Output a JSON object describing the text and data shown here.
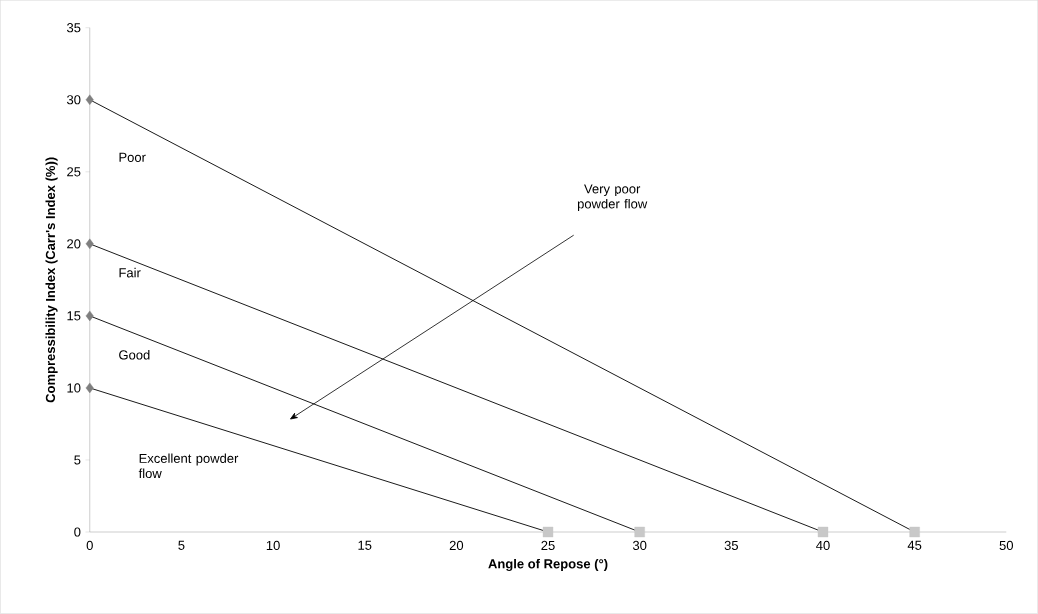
{
  "chart_data": {
    "type": "line",
    "xlabel": "Angle of Repose (°)",
    "ylabel": "Compressibility Index (Carr's Index (%))",
    "xlim": [
      0,
      50
    ],
    "ylim": [
      0,
      35
    ],
    "xticks": [
      0,
      5,
      10,
      15,
      20,
      25,
      30,
      35,
      40,
      45,
      50
    ],
    "yticks": [
      0,
      5,
      10,
      15,
      20,
      25,
      30,
      35
    ],
    "series": [
      {
        "x": [
          0,
          25
        ],
        "values": [
          10,
          0
        ],
        "color": "#000000",
        "marker": "none"
      },
      {
        "x": [
          0,
          30
        ],
        "values": [
          15,
          0
        ],
        "color": "#000000",
        "marker": "none"
      },
      {
        "x": [
          0,
          40
        ],
        "values": [
          20,
          0
        ],
        "color": "#000000",
        "marker": "none"
      },
      {
        "x": [
          0,
          45
        ],
        "values": [
          30,
          0
        ],
        "color": "#000000",
        "marker": "none"
      },
      {
        "type": "scatter",
        "x": [
          0,
          0,
          0,
          0
        ],
        "values": [
          10,
          15,
          20,
          30
        ],
        "color": "#7f7f7f",
        "marker": "diamond"
      },
      {
        "type": "scatter",
        "x": [
          25,
          30,
          40,
          45
        ],
        "values": [
          0,
          0,
          0,
          0
        ],
        "color": "#c8c8c8",
        "marker": "square"
      }
    ],
    "annotations": [
      "Poor",
      "Fair",
      "Good",
      "Excellent powder flow",
      "Very poor powder flow"
    ],
    "grid": false
  }
}
